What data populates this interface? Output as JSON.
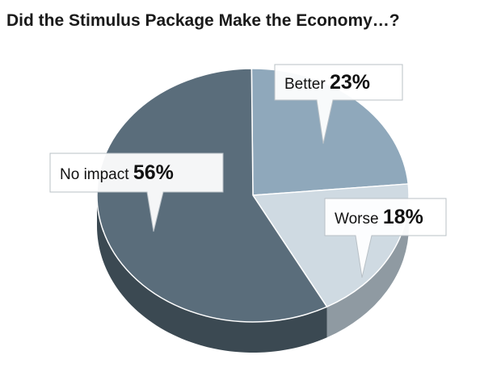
{
  "chart_data": {
    "type": "pie",
    "title": "Did the Stimulus Package Make the Economy…?",
    "slices": [
      {
        "label": "Better",
        "value": 23,
        "value_label": "23%",
        "color": "#8fa8bb"
      },
      {
        "label": "Worse",
        "value": 18,
        "value_label": "18%",
        "color": "#cfdae2"
      },
      {
        "label": "No impact",
        "value": 56,
        "value_label": "56%",
        "color": "#5a6d7b"
      }
    ]
  }
}
